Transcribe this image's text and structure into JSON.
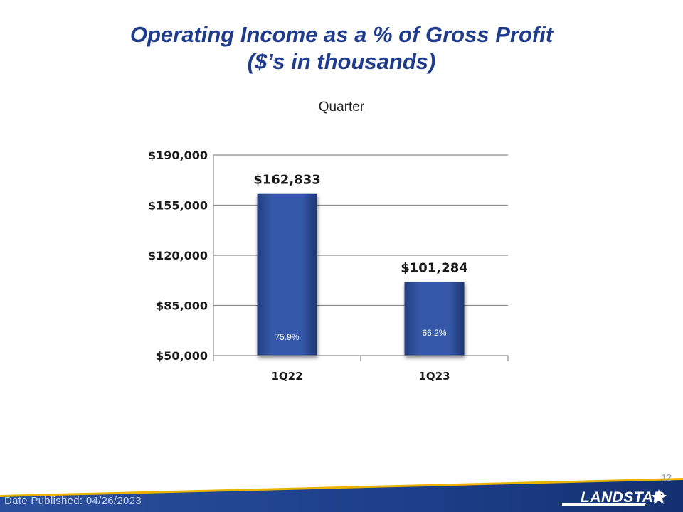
{
  "slide": {
    "title_line1": "Operating Income as a % of Gross Profit",
    "title_line2": "($’s in thousands)",
    "subtitle": "Quarter",
    "date_published": "Date Published:  04/26/2023",
    "page_number": "12",
    "logo_text": "LANDSTAR"
  },
  "colors": {
    "title": "#1f3b8c",
    "bar": "#2e52a0",
    "footer": "#1d3f8a"
  },
  "chart_data": {
    "type": "bar",
    "categories": [
      "1Q22",
      "1Q23"
    ],
    "values": [
      162833,
      101284
    ],
    "value_labels": [
      "$162,833",
      "$101,284"
    ],
    "percent_labels": [
      "75.9%",
      "66.2%"
    ],
    "y_ticks": [
      "$190,000",
      "$155,000",
      "$120,000",
      "$85,000",
      "$50,000"
    ],
    "ylim": [
      50000,
      190000
    ],
    "ytick_step": 35000,
    "grid": true,
    "legend": "none"
  }
}
